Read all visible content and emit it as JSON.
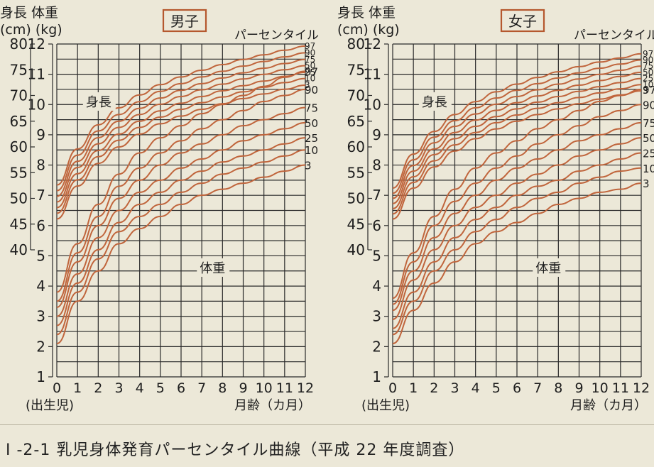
{
  "caption": "I -2-1  乳児身体発育パーセンタイル曲線（平成 22 年度調査）",
  "colors": {
    "curve": "#c0653c",
    "grid": "#2a2a2a",
    "title_box": "#b5582e",
    "background": "#ece8d8"
  },
  "chart_data": [
    {
      "type": "line",
      "title": "男子",
      "header_left": "身長 体重",
      "header_units": "(cm) (kg)",
      "percentile_header": "パーセンタイル",
      "xlabel_left": "(出生児)",
      "xlabel": "月齢（カ月）",
      "x_ticks": [
        "0",
        "1",
        "2",
        "3",
        "4",
        "5",
        "6",
        "7",
        "8",
        "9",
        "10",
        "11",
        "12"
      ],
      "height_ticks": [
        "40",
        "45",
        "50",
        "55",
        "60",
        "65",
        "70",
        "75",
        "80"
      ],
      "weight_ticks": [
        "1",
        "2",
        "3",
        "4",
        "5",
        "6",
        "7",
        "8",
        "9",
        "10",
        "11",
        "12"
      ],
      "xlim": [
        0,
        12
      ],
      "height_ylim": [
        40,
        80
      ],
      "weight_ylim": [
        1,
        12
      ],
      "label_height": "身長",
      "label_weight": "体重",
      "grid": true,
      "x": [
        0,
        1,
        2,
        3,
        4,
        5,
        6,
        7,
        8,
        9,
        10,
        11,
        12
      ],
      "height_series": [
        {
          "name": "97",
          "values": [
            52.6,
            59.6,
            64.3,
            67.6,
            70.1,
            72.1,
            73.6,
            74.9,
            76.0,
            77.0,
            77.9,
            78.8,
            79.6
          ]
        },
        {
          "name": "90",
          "values": [
            51.5,
            58.4,
            63.1,
            66.3,
            68.8,
            70.8,
            72.3,
            73.6,
            74.7,
            75.7,
            76.6,
            77.5,
            78.3
          ]
        },
        {
          "name": "75",
          "values": [
            50.4,
            57.2,
            61.8,
            65.0,
            67.5,
            69.5,
            71.0,
            72.3,
            73.4,
            74.4,
            75.3,
            76.2,
            77.0
          ]
        },
        {
          "name": "50",
          "values": [
            49.3,
            56.0,
            60.6,
            63.8,
            66.3,
            68.3,
            69.8,
            71.1,
            72.2,
            73.2,
            74.1,
            75.0,
            75.8
          ]
        },
        {
          "name": "25",
          "values": [
            48.2,
            54.8,
            59.3,
            62.5,
            65.0,
            67.0,
            68.5,
            69.8,
            70.9,
            71.9,
            72.8,
            73.7,
            74.5
          ]
        },
        {
          "name": "10",
          "values": [
            47.1,
            53.6,
            58.1,
            61.3,
            63.8,
            65.8,
            67.3,
            68.6,
            69.7,
            70.7,
            71.6,
            72.5,
            73.3
          ]
        },
        {
          "name": "3",
          "values": [
            46.0,
            52.4,
            56.8,
            60.0,
            62.5,
            64.5,
            66.0,
            67.3,
            68.4,
            69.4,
            70.3,
            71.2,
            72.0
          ]
        }
      ],
      "weight_series": [
        {
          "name": "97",
          "values": [
            3.8,
            5.4,
            6.7,
            7.7,
            8.4,
            8.9,
            9.3,
            9.7,
            10.0,
            10.3,
            10.6,
            10.9,
            11.1
          ]
        },
        {
          "name": "90",
          "values": [
            3.5,
            5.1,
            6.3,
            7.3,
            7.9,
            8.4,
            8.8,
            9.2,
            9.5,
            9.8,
            10.1,
            10.3,
            10.5
          ]
        },
        {
          "name": "75",
          "values": [
            3.3,
            4.8,
            6.0,
            6.9,
            7.5,
            8.0,
            8.4,
            8.7,
            9.0,
            9.3,
            9.5,
            9.7,
            9.9
          ]
        },
        {
          "name": "50",
          "values": [
            3.0,
            4.4,
            5.6,
            6.5,
            7.1,
            7.5,
            7.9,
            8.2,
            8.5,
            8.8,
            9.0,
            9.2,
            9.4
          ]
        },
        {
          "name": "25",
          "values": [
            2.7,
            4.1,
            5.2,
            6.1,
            6.7,
            7.1,
            7.5,
            7.8,
            8.1,
            8.3,
            8.5,
            8.7,
            8.9
          ]
        },
        {
          "name": "10",
          "values": [
            2.4,
            3.8,
            4.9,
            5.8,
            6.3,
            6.7,
            7.1,
            7.4,
            7.7,
            7.9,
            8.1,
            8.3,
            8.5
          ]
        },
        {
          "name": "3",
          "values": [
            2.1,
            3.5,
            4.5,
            5.4,
            5.9,
            6.3,
            6.7,
            7.0,
            7.2,
            7.4,
            7.6,
            7.8,
            8.0
          ]
        }
      ]
    },
    {
      "type": "line",
      "title": "女子",
      "header_left": "身長 体重",
      "header_units": "(cm) (kg)",
      "percentile_header": "パーセンタイル",
      "xlabel_left": "(出生児)",
      "xlabel": "月齢（カ月）",
      "x_ticks": [
        "0",
        "1",
        "2",
        "3",
        "4",
        "5",
        "6",
        "7",
        "8",
        "9",
        "10",
        "11",
        "12"
      ],
      "height_ticks": [
        "40",
        "45",
        "50",
        "55",
        "60",
        "65",
        "70",
        "75",
        "80"
      ],
      "weight_ticks": [
        "1",
        "2",
        "3",
        "4",
        "5",
        "6",
        "7",
        "8",
        "9",
        "10",
        "11",
        "12"
      ],
      "xlim": [
        0,
        12
      ],
      "height_ylim": [
        40,
        80
      ],
      "weight_ylim": [
        1,
        12
      ],
      "label_height": "身長",
      "label_weight": "体重",
      "grid": true,
      "x": [
        0,
        1,
        2,
        3,
        4,
        5,
        6,
        7,
        8,
        9,
        10,
        11,
        12
      ],
      "height_series": [
        {
          "name": "97",
          "values": [
            52.0,
            58.6,
            63.0,
            66.3,
            68.8,
            70.7,
            72.2,
            73.5,
            74.6,
            75.6,
            76.5,
            77.3,
            78.1
          ]
        },
        {
          "name": "90",
          "values": [
            51.0,
            57.5,
            61.9,
            65.1,
            67.6,
            69.5,
            71.0,
            72.3,
            73.4,
            74.4,
            75.3,
            76.1,
            76.9
          ]
        },
        {
          "name": "75",
          "values": [
            50.0,
            56.4,
            60.8,
            64.0,
            66.4,
            68.3,
            69.8,
            71.1,
            72.2,
            73.2,
            74.1,
            74.9,
            75.7
          ]
        },
        {
          "name": "50",
          "values": [
            49.0,
            55.3,
            59.6,
            62.8,
            65.2,
            67.1,
            68.6,
            69.9,
            71.0,
            72.0,
            72.9,
            73.7,
            74.5
          ]
        },
        {
          "name": "25",
          "values": [
            48.0,
            54.2,
            58.5,
            61.6,
            64.0,
            65.9,
            67.4,
            68.7,
            69.8,
            70.8,
            71.7,
            72.5,
            73.3
          ]
        },
        {
          "name": "10",
          "values": [
            47.0,
            53.1,
            57.3,
            60.4,
            62.8,
            64.7,
            66.2,
            67.5,
            68.6,
            69.6,
            70.5,
            71.3,
            72.1
          ]
        },
        {
          "name": "3",
          "values": [
            46.0,
            52.0,
            56.1,
            59.2,
            61.6,
            63.5,
            65.0,
            66.3,
            67.4,
            68.4,
            69.3,
            70.1,
            70.9
          ]
        }
      ],
      "weight_series": [
        {
          "name": "97",
          "values": [
            3.6,
            5.1,
            6.3,
            7.2,
            7.9,
            8.4,
            8.8,
            9.2,
            9.5,
            9.8,
            10.1,
            10.3,
            10.5
          ]
        },
        {
          "name": "90",
          "values": [
            3.4,
            4.8,
            6.0,
            6.8,
            7.4,
            7.9,
            8.3,
            8.7,
            9.0,
            9.3,
            9.6,
            9.8,
            10.0
          ]
        },
        {
          "name": "75",
          "values": [
            3.2,
            4.5,
            5.6,
            6.4,
            7.0,
            7.5,
            7.9,
            8.2,
            8.5,
            8.8,
            9.0,
            9.2,
            9.4
          ]
        },
        {
          "name": "50",
          "values": [
            2.9,
            4.2,
            5.2,
            6.0,
            6.6,
            7.0,
            7.4,
            7.7,
            8.0,
            8.3,
            8.5,
            8.7,
            8.9
          ]
        },
        {
          "name": "25",
          "values": [
            2.6,
            3.8,
            4.8,
            5.6,
            6.2,
            6.6,
            7.0,
            7.3,
            7.5,
            7.8,
            8.0,
            8.2,
            8.4
          ]
        },
        {
          "name": "10",
          "values": [
            2.4,
            3.5,
            4.5,
            5.2,
            5.8,
            6.2,
            6.6,
            6.9,
            7.1,
            7.4,
            7.6,
            7.8,
            7.9
          ]
        },
        {
          "name": "3",
          "values": [
            2.1,
            3.2,
            4.1,
            4.8,
            5.4,
            5.8,
            6.1,
            6.4,
            6.7,
            6.9,
            7.1,
            7.2,
            7.4
          ]
        }
      ]
    }
  ]
}
